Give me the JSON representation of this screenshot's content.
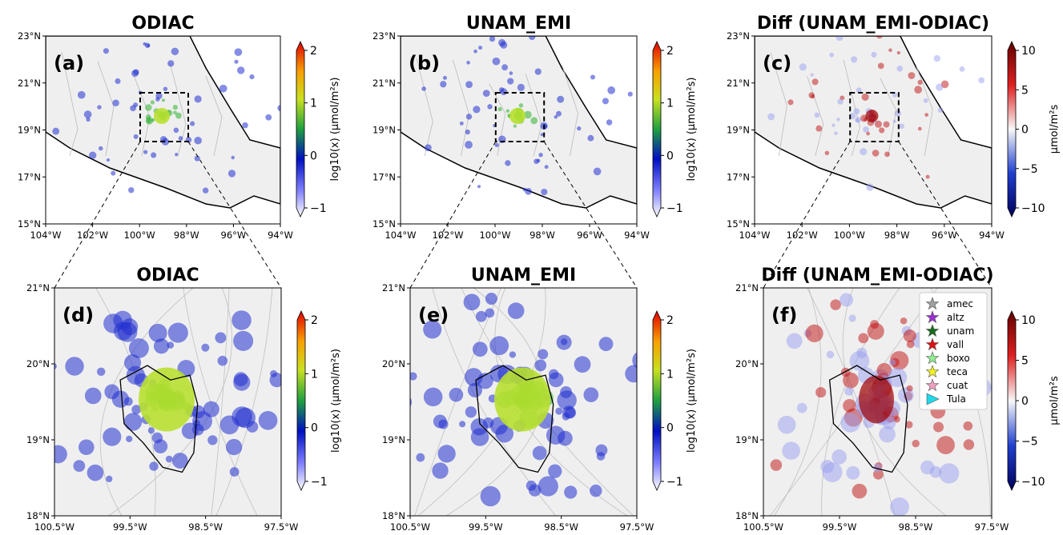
{
  "panels": [
    {
      "title": "ODIAC",
      "label": "(a)",
      "kind": "log",
      "xticks": [
        "104°W",
        "102°W",
        "100°W",
        "98°W",
        "96°W",
        "94°W"
      ],
      "yticks": [
        "23°N",
        "21°N",
        "19°N",
        "17°N",
        "15°N"
      ],
      "colorbar": {
        "label": "log10(x) (μmol/m²s)",
        "ticks": [
          {
            "value": -1,
            "label": "−1"
          },
          0,
          1,
          2
        ]
      }
    },
    {
      "title": "UNAM_EMI",
      "label": "(b)",
      "kind": "log",
      "xticks": [
        "104°W",
        "102°W",
        "100°W",
        "98°W",
        "96°W",
        "94°W"
      ],
      "yticks": [
        "23°N",
        "21°N",
        "19°N",
        "17°N",
        "15°N"
      ],
      "colorbar": {
        "label": "log10(x) (μmol/m²s)",
        "ticks": [
          {
            "value": -1,
            "label": "−1"
          },
          0,
          1,
          2
        ]
      }
    },
    {
      "title": "Diff (UNAM_EMI-ODIAC)",
      "label": "(c)",
      "kind": "diff",
      "xticks": [
        "104°W",
        "102°W",
        "100°W",
        "98°W",
        "96°W",
        "94°W"
      ],
      "yticks": [
        "23°N",
        "21°N",
        "19°N",
        "17°N",
        "15°N"
      ],
      "colorbar": {
        "label": "μmol/m²s",
        "ticks": [
          {
            "value": -10,
            "label": "−10"
          },
          {
            "value": -5,
            "label": "−5"
          },
          0,
          5,
          10
        ]
      }
    },
    {
      "title": "ODIAC",
      "label": "(d)",
      "kind": "log",
      "xticks": [
        "100.5°W",
        "99.5°W",
        "98.5°W",
        "97.5°W"
      ],
      "yticks": [
        "21°N",
        "20°N",
        "19°N",
        "18°N"
      ],
      "colorbar": {
        "label": "log10(x) (μmol/m²s)",
        "ticks": [
          {
            "value": -1,
            "label": "−1"
          },
          0,
          1,
          2
        ]
      }
    },
    {
      "title": "UNAM_EMI",
      "label": "(e)",
      "kind": "log",
      "xticks": [
        "100.5°W",
        "99.5°W",
        "98.5°W",
        "97.5°W"
      ],
      "yticks": [
        "21°N",
        "20°N",
        "19°N",
        "18°N"
      ],
      "colorbar": {
        "label": "log10(x) (μmol/m²s)",
        "ticks": [
          {
            "value": -1,
            "label": "−1"
          },
          0,
          1,
          2
        ]
      }
    },
    {
      "title": "Diff (UNAM_EMI-ODIAC)",
      "label": "(f)",
      "kind": "diff",
      "xticks": [
        "100.5°W",
        "99.5°W",
        "98.5°W",
        "97.5°W"
      ],
      "yticks": [
        "21°N",
        "20°N",
        "19°N",
        "18°N"
      ],
      "colorbar": {
        "label": "μmol/m²s",
        "ticks": [
          {
            "value": -10,
            "label": "−10"
          },
          {
            "value": -5,
            "label": "−5"
          },
          0,
          5,
          10
        ]
      },
      "legend": [
        {
          "name": "amec",
          "color": "#a0a0a0",
          "marker": "star"
        },
        {
          "name": "altz",
          "color": "#9b30d0",
          "marker": "star"
        },
        {
          "name": "unam",
          "color": "#136b1a",
          "marker": "star"
        },
        {
          "name": "vall",
          "color": "#e01010",
          "marker": "star"
        },
        {
          "name": "boxo",
          "color": "#90ee90",
          "marker": "star"
        },
        {
          "name": "teca",
          "color": "#f5f020",
          "marker": "star"
        },
        {
          "name": "cuat",
          "color": "#f4a0c0",
          "marker": "star"
        },
        {
          "name": "Tula",
          "color": "#20d8e8",
          "marker": "triangle"
        }
      ]
    }
  ]
}
